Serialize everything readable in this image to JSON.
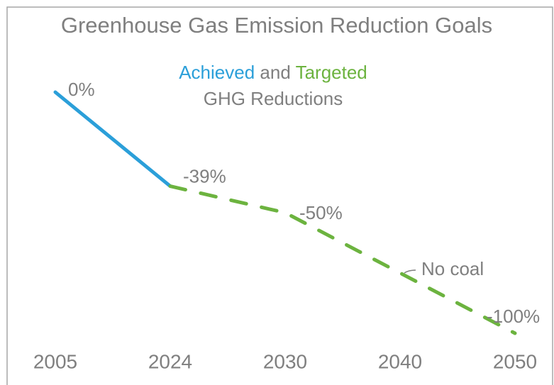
{
  "chart_data": {
    "type": "line",
    "title": "Greenhouse Gas Emission Reduction Goals",
    "subtitle_joiner": "and",
    "subtitle": "GHG Reductions",
    "categories": [
      "2005",
      "2024",
      "2030",
      "2040",
      "2050"
    ],
    "series": [
      {
        "name": "Achieved",
        "color": "#2b9fd9",
        "dashed": false,
        "values": [
          0,
          -39,
          null,
          null,
          null
        ],
        "value_labels": [
          "0%",
          null,
          null,
          null,
          null
        ]
      },
      {
        "name": "Targeted",
        "color": "#6cb33f",
        "dashed": true,
        "values": [
          null,
          -39,
          -50,
          -75,
          -100
        ],
        "value_labels": [
          null,
          "-39%",
          "-50%",
          null,
          "-100%"
        ]
      }
    ],
    "annotations": [
      {
        "category": 3,
        "text": "No coal"
      }
    ],
    "ylim": [
      -100,
      0
    ],
    "grid": false
  }
}
